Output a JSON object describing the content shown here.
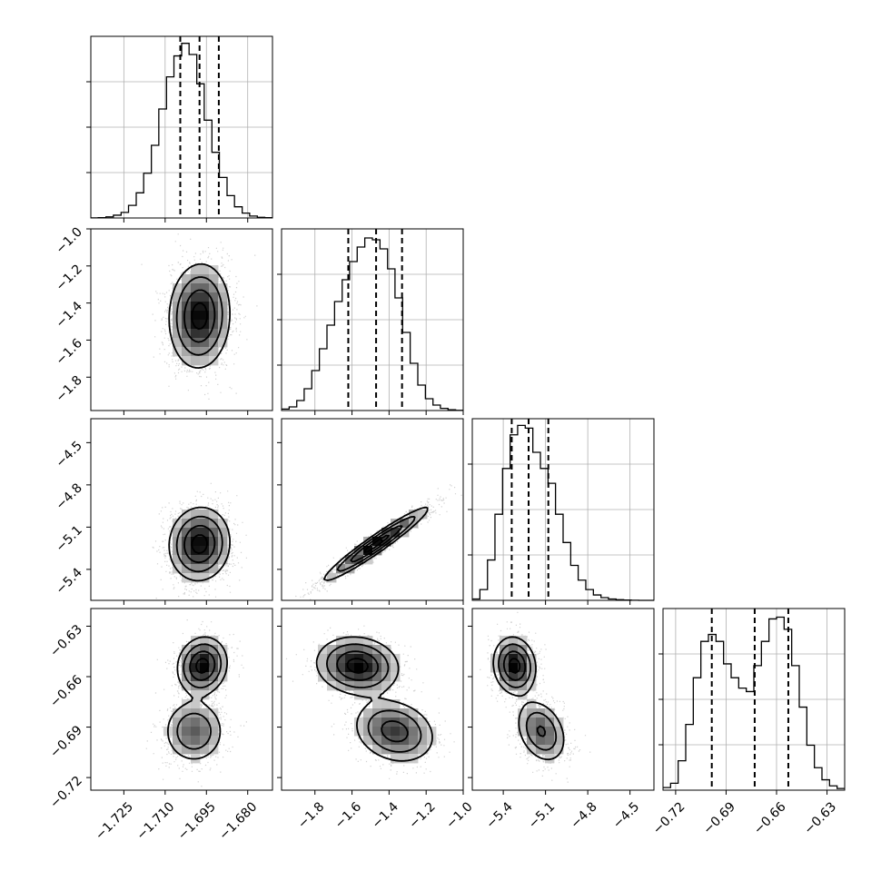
{
  "chart_data": {
    "type": "corner",
    "title": "",
    "grid": true,
    "num_parameters": 4,
    "parameters": [
      {
        "axis_range": [
          -1.737,
          -1.671
        ],
        "ticks": [
          -1.725,
          -1.71,
          -1.695,
          -1.68
        ],
        "tick_labels": [
          "−1.725",
          "−1.710",
          "−1.695",
          "−1.680"
        ],
        "quantiles": [
          -1.7045,
          -1.6975,
          -1.6905
        ],
        "median": -1.6975,
        "sigma": 0.0055
      },
      {
        "axis_range": [
          -1.98,
          -1.0
        ],
        "ticks": [
          -1.8,
          -1.6,
          -1.4,
          -1.2,
          -1.0
        ],
        "tick_labels": [
          "−1.8",
          "−1.6",
          "−1.4",
          "−1.2",
          "−1.0"
        ],
        "quantiles": [
          -1.62,
          -1.47,
          -1.33
        ],
        "median": -1.47,
        "sigma": 0.14
      },
      {
        "axis_range": [
          -5.62,
          -4.33
        ],
        "ticks": [
          -5.4,
          -5.1,
          -4.8,
          -4.5
        ],
        "tick_labels": [
          "−5.4",
          "−5.1",
          "−4.8",
          "−4.5"
        ],
        "quantiles": [
          -5.34,
          -5.22,
          -5.08
        ],
        "median": -5.22,
        "sigma": 0.13
      },
      {
        "axis_range": [
          -0.7275,
          -0.6195
        ],
        "ticks": [
          -0.72,
          -0.69,
          -0.66,
          -0.63
        ],
        "tick_labels": [
          "−0.72",
          "−0.69",
          "−0.66",
          "−0.63"
        ],
        "quantiles": [
          -0.6985,
          -0.673,
          -0.653
        ],
        "median": -0.673,
        "sigma": 0.018
      }
    ],
    "histograms": [
      {
        "param": 0,
        "bin_edges": [
          -1.737,
          -1.7343,
          -1.7315,
          -1.7288,
          -1.726,
          -1.7233,
          -1.7205,
          -1.7178,
          -1.715,
          -1.7123,
          -1.7095,
          -1.7068,
          -1.704,
          -1.7013,
          -1.6985,
          -1.6958,
          -1.693,
          -1.6903,
          -1.6875,
          -1.6848,
          -1.682,
          -1.6793,
          -1.6765,
          -1.6738,
          -1.671
        ],
        "counts": [
          1,
          2,
          8,
          20,
          40,
          90,
          180,
          320,
          520,
          780,
          1010,
          1160,
          1250,
          1170,
          960,
          700,
          470,
          290,
          160,
          80,
          35,
          14,
          5,
          2
        ],
        "y_max": 1300
      },
      {
        "param": 1,
        "bin_edges": [
          -1.98,
          -1.939,
          -1.898,
          -1.858,
          -1.817,
          -1.776,
          -1.735,
          -1.694,
          -1.653,
          -1.613,
          -1.572,
          -1.531,
          -1.49,
          -1.449,
          -1.408,
          -1.368,
          -1.327,
          -1.286,
          -1.245,
          -1.204,
          -1.163,
          -1.123,
          -1.082,
          -1.041,
          -1.0
        ],
        "counts": [
          8,
          20,
          55,
          120,
          220,
          340,
          470,
          600,
          720,
          820,
          900,
          950,
          940,
          890,
          780,
          620,
          430,
          260,
          140,
          65,
          30,
          12,
          4,
          1
        ],
        "y_max": 1000
      },
      {
        "param": 2,
        "bin_edges": [
          -5.62,
          -5.566,
          -5.512,
          -5.459,
          -5.405,
          -5.351,
          -5.298,
          -5.244,
          -5.19,
          -5.136,
          -5.082,
          -5.029,
          -4.975,
          -4.921,
          -4.868,
          -4.814,
          -4.76,
          -4.706,
          -4.653,
          -4.599,
          -4.545,
          -4.491,
          -4.438,
          -4.384,
          -4.33
        ],
        "counts": [
          10,
          80,
          300,
          640,
          980,
          1230,
          1300,
          1280,
          1100,
          980,
          870,
          640,
          430,
          260,
          150,
          80,
          40,
          20,
          10,
          5,
          2,
          1,
          0,
          0
        ],
        "y_max": 1350
      },
      {
        "param": 3,
        "bin_edges": [
          -0.7275,
          -0.723,
          -0.7185,
          -0.714,
          -0.7095,
          -0.705,
          -0.7005,
          -0.696,
          -0.6915,
          -0.687,
          -0.6825,
          -0.678,
          -0.6735,
          -0.669,
          -0.6645,
          -0.66,
          -0.6555,
          -0.651,
          -0.6465,
          -0.642,
          -0.6375,
          -0.633,
          -0.6285,
          -0.624,
          -0.6195
        ],
        "counts": [
          15,
          40,
          170,
          380,
          650,
          860,
          900,
          860,
          730,
          650,
          590,
          570,
          720,
          860,
          990,
          1000,
          930,
          720,
          480,
          260,
          130,
          60,
          25,
          10
        ],
        "y_max": 1050
      }
    ],
    "pair_distributions": [
      {
        "x_param": 0,
        "y_param": 1,
        "components": [
          {
            "weight": 1.0,
            "mean": [
              -1.6975,
              -1.47
            ],
            "sigma": [
              0.0055,
              0.14
            ],
            "rho": 0.05
          }
        ]
      },
      {
        "x_param": 0,
        "y_param": 2,
        "components": [
          {
            "weight": 1.0,
            "mean": [
              -1.6975,
              -5.22
            ],
            "sigma": [
              0.0055,
              0.13
            ],
            "rho": 0.05
          }
        ]
      },
      {
        "x_param": 1,
        "y_param": 2,
        "components": [
          {
            "weight": 1.0,
            "mean": [
              -1.47,
              -5.22
            ],
            "sigma": [
              0.14,
              0.13
            ],
            "rho": 0.96
          }
        ]
      },
      {
        "x_param": 0,
        "y_param": 3,
        "components": [
          {
            "weight": 0.55,
            "mean": [
              -1.6965,
              -0.6535
            ],
            "sigma": [
              0.0045,
              0.0085
            ],
            "rho": 0.1
          },
          {
            "weight": 0.45,
            "mean": [
              -1.6995,
              -0.6925
            ],
            "sigma": [
              0.0055,
              0.0095
            ],
            "rho": 0.0
          }
        ]
      },
      {
        "x_param": 1,
        "y_param": 3,
        "components": [
          {
            "weight": 0.55,
            "mean": [
              -1.57,
              -0.6535
            ],
            "sigma": [
              0.11,
              0.0085
            ],
            "rho": -0.1
          },
          {
            "weight": 0.45,
            "mean": [
              -1.37,
              -0.6925
            ],
            "sigma": [
              0.11,
              0.0095
            ],
            "rho": -0.2
          }
        ]
      },
      {
        "x_param": 2,
        "y_param": 3,
        "components": [
          {
            "weight": 0.55,
            "mean": [
              -5.32,
              -0.6535
            ],
            "sigma": [
              0.075,
              0.0085
            ],
            "rho": -0.1
          },
          {
            "weight": 0.45,
            "mean": [
              -5.13,
              -0.6925
            ],
            "sigma": [
              0.09,
              0.0095
            ],
            "rho": -0.3
          }
        ]
      }
    ],
    "contour_levels_sigma": [
      0.5,
      1.0,
      1.5,
      2.0
    ],
    "colors": {
      "line": "#000000",
      "grid": "#b0b0b0",
      "points": "#9a9a9a",
      "density_dark": "#000000",
      "density_light": "#ffffff"
    }
  }
}
